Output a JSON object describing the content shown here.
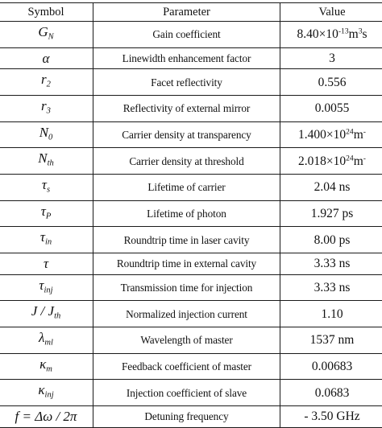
{
  "headers": {
    "symbol": "Symbol",
    "parameter": "Parameter",
    "value": "Value"
  },
  "rows": [
    {
      "symbol": {
        "base": "G",
        "sub": "N"
      },
      "parameter": "Gain coefficient",
      "value": {
        "main": "8.40×10",
        "sup": "-13",
        "unit": "m",
        "unit_sup": "3",
        "tail": "s"
      }
    },
    {
      "symbol": {
        "base": "α"
      },
      "parameter": "Linewidth enhancement factor",
      "value": {
        "main": "3"
      }
    },
    {
      "symbol": {
        "base": "r",
        "sub": "2"
      },
      "parameter": "Facet reflectivity",
      "value": {
        "main": "0.556"
      }
    },
    {
      "symbol": {
        "base": "r",
        "sub": "3"
      },
      "parameter": "Reflectivity of external mirror",
      "value": {
        "main": "0.0055"
      }
    },
    {
      "symbol": {
        "base": "N",
        "sub": "0"
      },
      "parameter": "Carrier density at transparency",
      "value": {
        "main": "1.400×10",
        "sup": "24",
        "unit": "m",
        "unit_sup": "-"
      }
    },
    {
      "symbol": {
        "base": "N",
        "sub": "th"
      },
      "parameter": "Carrier density at threshold",
      "value": {
        "main": "2.018×10",
        "sup": "24",
        "unit": "m",
        "unit_sup": "-"
      }
    },
    {
      "symbol": {
        "base": "τ",
        "sub": "s"
      },
      "parameter": "Lifetime of carrier",
      "value": {
        "main": "2.04 ns"
      }
    },
    {
      "symbol": {
        "base": "τ",
        "sub": "P"
      },
      "parameter": "Lifetime of photon",
      "value": {
        "main": "1.927 ps"
      }
    },
    {
      "symbol": {
        "base": "τ",
        "sub": "in"
      },
      "parameter": "Roundtrip time in laser cavity",
      "value": {
        "main": "8.00 ps"
      }
    },
    {
      "symbol": {
        "base": "τ"
      },
      "parameter": "Roundtrip time in external cavity",
      "value": {
        "main": "3.33 ns"
      }
    },
    {
      "symbol": {
        "base": "τ",
        "sub": "inj"
      },
      "parameter": "Transmission time for injection",
      "value": {
        "main": "3.33 ns"
      }
    },
    {
      "symbol": {
        "base": "J / J",
        "sub": "th"
      },
      "parameter": "Normalized injection current",
      "value": {
        "main": "1.10"
      }
    },
    {
      "symbol": {
        "base": "λ",
        "sub": "ml"
      },
      "parameter": "Wavelength of master",
      "value": {
        "main": "1537 nm"
      }
    },
    {
      "symbol": {
        "base": "κ",
        "sub": "m"
      },
      "parameter": "Feedback coefficient of master",
      "value": {
        "main": "0.00683"
      }
    },
    {
      "symbol": {
        "base": "κ",
        "sub": "inj"
      },
      "parameter": "Injection coefficient of slave",
      "value": {
        "main": "0.0683"
      }
    },
    {
      "symbol": {
        "base": "f = Δω / 2π"
      },
      "parameter": "Detuning frequency",
      "value": {
        "main": "- 3.50 GHz"
      }
    }
  ]
}
